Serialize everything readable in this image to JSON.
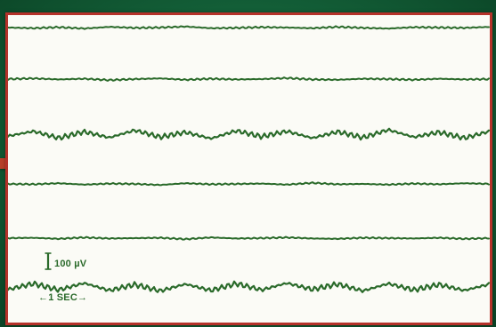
{
  "chart_data": {
    "type": "line",
    "channel_count": 6,
    "duration_s": 6,
    "trace_color": "#2a6a2a",
    "frame_color": "#b5322a",
    "background_color": "#fbfbf6",
    "series": [
      {
        "values_uV": [
          0,
          2,
          -1,
          3,
          -2,
          1,
          0,
          -3,
          2,
          1,
          -1,
          0,
          2,
          -2,
          1,
          3,
          -1,
          0,
          1,
          -2
        ]
      },
      {
        "values_uV": [
          0,
          -2,
          1,
          -1,
          3,
          0,
          -2,
          2,
          -1,
          1,
          0,
          -3,
          1,
          2,
          -1,
          0,
          2,
          -1,
          1,
          0
        ]
      },
      {
        "values_uV": [
          4,
          -6,
          8,
          -5,
          7,
          -8,
          6,
          -4,
          9,
          -7,
          5,
          -6,
          8,
          -5,
          7,
          -9,
          6,
          -4,
          8,
          -6
        ]
      },
      {
        "values_uV": [
          0,
          1,
          -2,
          2,
          -1,
          0,
          3,
          -2,
          1,
          0,
          -1,
          2,
          -3,
          1,
          0,
          2,
          -1,
          1,
          -2,
          0
        ]
      },
      {
        "values_uV": [
          0,
          -1,
          2,
          -2,
          1,
          0,
          -1,
          3,
          -2,
          1,
          0,
          -2,
          1,
          2,
          -1,
          0,
          1,
          -1,
          2,
          0
        ]
      },
      {
        "values_uV": [
          5,
          -7,
          6,
          -8,
          7,
          -5,
          8,
          -6,
          7,
          -7,
          6,
          -8,
          5,
          -6,
          8,
          -7,
          6,
          -5,
          7,
          -6
        ]
      }
    ],
    "calibration": {
      "amplitude_label": "100 µV",
      "amplitude_uV": 100,
      "time_label": "←1 SEC→",
      "time_s": 1
    }
  }
}
